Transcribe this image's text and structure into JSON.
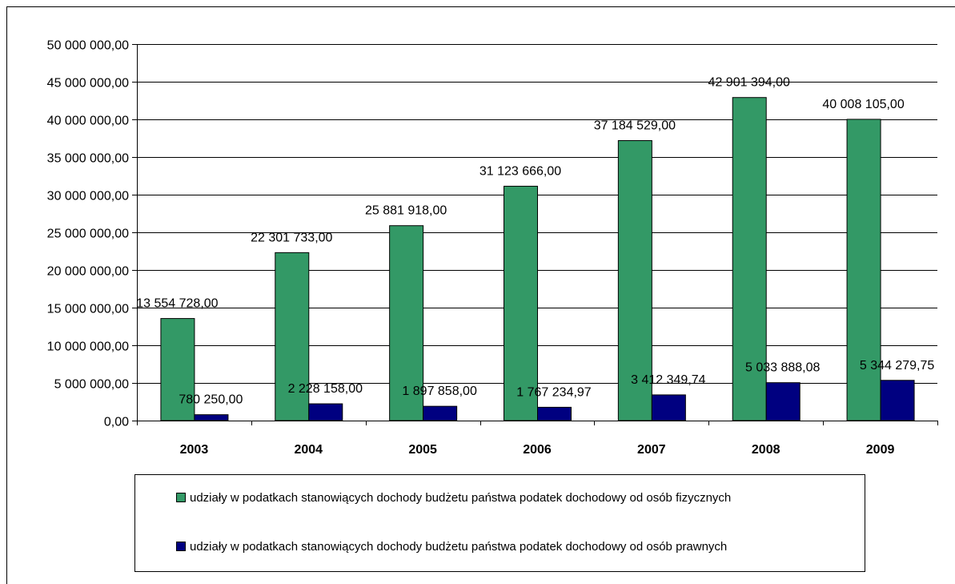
{
  "chart_data": {
    "type": "bar",
    "title": "",
    "xlabel": "",
    "ylabel": "",
    "categories": [
      "2003",
      "2004",
      "2005",
      "2006",
      "2007",
      "2008",
      "2009"
    ],
    "ylim": [
      0,
      50000000
    ],
    "y_ticks": [
      "0,00",
      "5 000 000,00",
      "10 000 000,00",
      "15 000 000,00",
      "20 000 000,00",
      "25 000 000,00",
      "30 000 000,00",
      "35 000 000,00",
      "40 000 000,00",
      "45 000 000,00",
      "50 000 000,00"
    ],
    "grid": true,
    "legend_position": "bottom",
    "series": [
      {
        "name": "udziały w podatkach stanowiących dochody budżetu państwa podatek dochodowy od osób fizycznych",
        "color": "#339966",
        "values": [
          13554728.0,
          22301733.0,
          25881918.0,
          31123666.0,
          37184529.0,
          42901394.0,
          40008105.0
        ],
        "labels": [
          "13 554 728,00",
          "22 301 733,00",
          "25 881 918,00",
          "31 123 666,00",
          "37 184 529,00",
          "42 901 394,00",
          "40 008 105,00"
        ]
      },
      {
        "name": "udziały w podatkach stanowiących dochody budżetu państwa podatek dochodowy od osób prawnych",
        "color": "#000080",
        "values": [
          780250.0,
          2228158.0,
          1897858.0,
          1767234.97,
          3412349.74,
          5033888.08,
          5344279.75
        ],
        "labels": [
          "780 250,00",
          "2 228 158,00",
          "1 897 858,00",
          "1 767 234,97",
          "3 412 349,74",
          "5 033 888,08",
          "5 344 279,75"
        ]
      }
    ]
  }
}
